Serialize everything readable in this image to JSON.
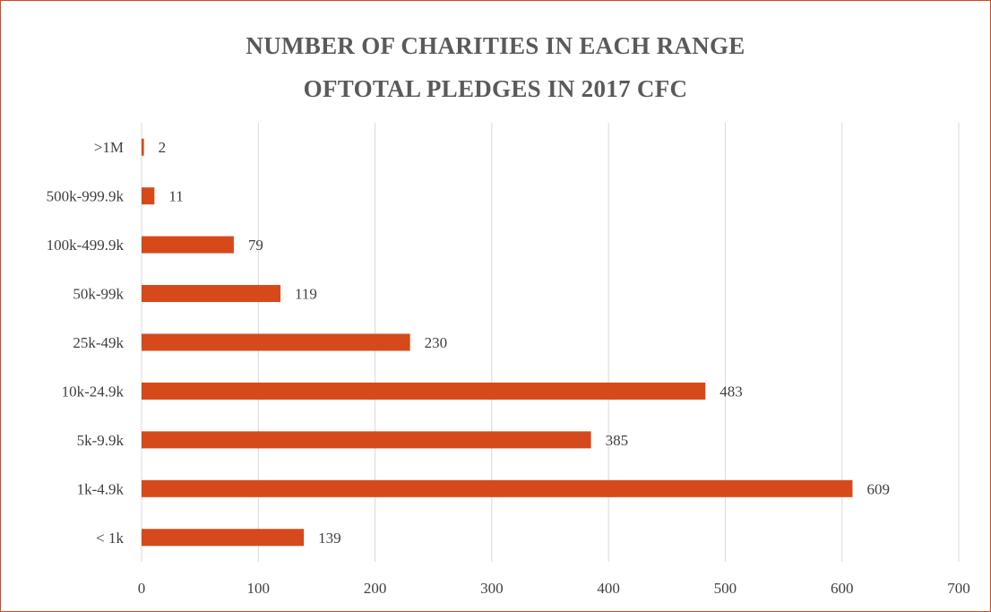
{
  "chart_data": {
    "type": "bar",
    "orientation": "horizontal",
    "title": [
      "NUMBER OF CHARITIES IN EACH RANGE",
      "OFTOTAL PLEDGES IN 2017 CFC"
    ],
    "categories": [
      ">1M",
      "500k-999.9k",
      "100k-499.9k",
      "50k-99k",
      "25k-49k",
      "10k-24.9k",
      "5k-9.9k",
      "1k-4.9k",
      "< 1k"
    ],
    "values": [
      2,
      11,
      79,
      119,
      230,
      483,
      385,
      609,
      139
    ],
    "xlim": [
      0,
      700
    ],
    "xticks": [
      0,
      100,
      200,
      300,
      400,
      500,
      600,
      700
    ],
    "grid": true,
    "legend": "none",
    "bar_color": "#D5491A",
    "grid_color": "#D9D9D9",
    "border_color": "#D5491A"
  }
}
